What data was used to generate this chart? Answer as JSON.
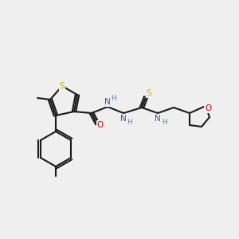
{
  "bg_color": "#efefef",
  "bond_color": "#1a1a1a",
  "bond_width": 1.5,
  "atom_colors": {
    "S": "#ccaa00",
    "N": "#4444cc",
    "O": "#cc0000",
    "C": "#1a1a1a",
    "H": "#5588aa"
  },
  "font_size": 7.5,
  "font_size_small": 6.5
}
